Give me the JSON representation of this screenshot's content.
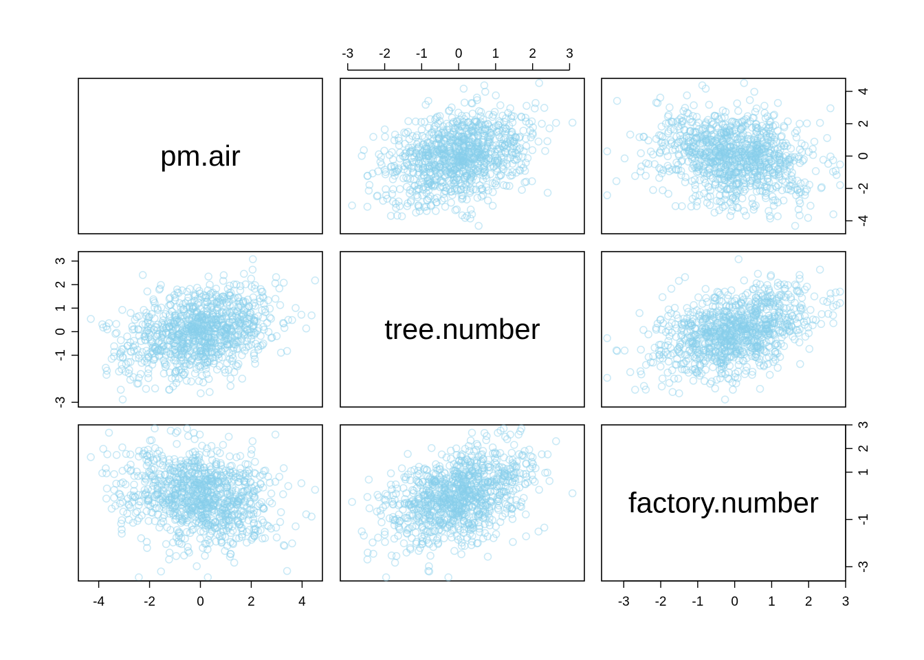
{
  "chart_data": {
    "type": "scatter",
    "variables": [
      "pm.air",
      "tree.number",
      "factory.number"
    ],
    "point_color": "#87CEEB",
    "point_opacity": 0.45,
    "n_points": 1000,
    "axes": {
      "pm.air": {
        "range": [
          -4.8,
          4.8
        ],
        "ticks": [
          -4,
          -2,
          0,
          2,
          4
        ]
      },
      "tree.number": {
        "range": [
          -3.2,
          3.4
        ],
        "ticks": [
          -3,
          -2,
          -1,
          0,
          1,
          2,
          3
        ]
      },
      "factory.number": {
        "range": [
          -3.6,
          3.0
        ],
        "ticks_top_right": [
          -3,
          -2,
          -1,
          0,
          1,
          2,
          3
        ],
        "ticks_right": [
          -3,
          -1,
          1,
          2,
          3
        ]
      }
    },
    "pm_air_ticks_right": [
      -4,
      -2,
      0,
      2,
      4
    ],
    "tree_number_ticks_left": [
      -3,
      -1,
      0,
      1,
      2,
      3
    ],
    "correlations": {
      "pm.air~tree.number": 0.3,
      "pm.air~factory.number": -0.25,
      "tree.number~factory.number": 0.4
    },
    "layout": "3x3 pairs matrix; diagonal panels show variable names"
  }
}
